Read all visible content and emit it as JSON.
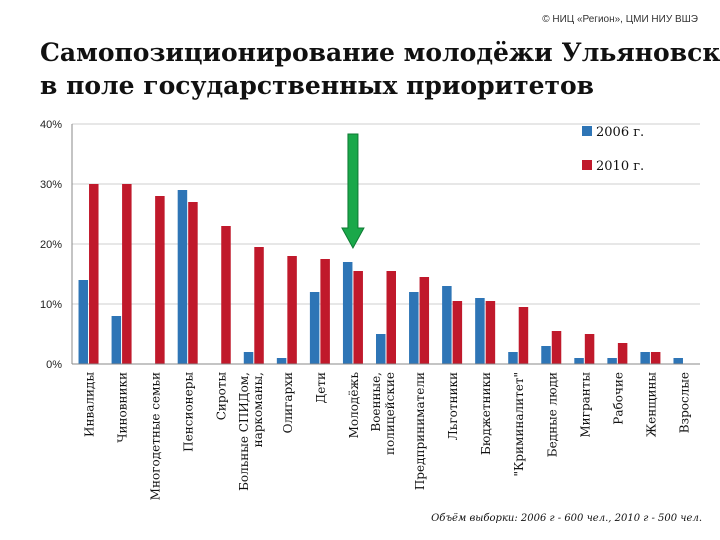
{
  "header": {
    "copyright": "© НИЦ «Регион», ЦМИ НИУ ВШЭ",
    "title_line1": "Самопозиционирование молодёжи Ульяновска",
    "title_line2": "в поле государственных приоритетов"
  },
  "footnote": "Объём выборки: 2006 г - 600 чел., 2010 г - 500 чел.",
  "colors": {
    "series_2006": "#2e75b6",
    "series_2010": "#c0192b",
    "arrow": "#1aa84a",
    "grid": "#cfcfcf"
  },
  "chart_data": {
    "type": "bar",
    "title": "",
    "xlabel": "",
    "ylabel": "",
    "ylim": [
      0,
      40
    ],
    "yticks": [
      0,
      10,
      20,
      30,
      40
    ],
    "ytick_labels": [
      "0%",
      "10%",
      "20%",
      "30%",
      "40%"
    ],
    "grid": true,
    "legend_position": "top-right",
    "highlight_category": "Молодёжь",
    "categories": [
      "Инвалиды",
      "Чиновники",
      "Многодетные семьи",
      "Пенсионеры",
      "Сироты",
      "Больные СПИДом, наркоманы,",
      "Олигархи",
      "Дети",
      "Молодёжь",
      "Военные, полицейские",
      "Предприниматели",
      "Льготники",
      "Бюджетники",
      "\"Криминалитет\"",
      "Бедные люди",
      "Мигранты",
      "Рабочие",
      "Женщины",
      "Взрослые"
    ],
    "series": [
      {
        "name": "2006 г.",
        "values": [
          14,
          8,
          0,
          29,
          0,
          2,
          1,
          12,
          17,
          5,
          12,
          13,
          11,
          2,
          3,
          1,
          1,
          2,
          1
        ]
      },
      {
        "name": "2010 г.",
        "values": [
          30,
          30,
          28,
          27,
          23,
          19.5,
          18,
          17.5,
          15.5,
          15.5,
          14.5,
          10.5,
          10.5,
          9.5,
          5.5,
          5,
          3.5,
          2,
          0
        ]
      }
    ]
  }
}
